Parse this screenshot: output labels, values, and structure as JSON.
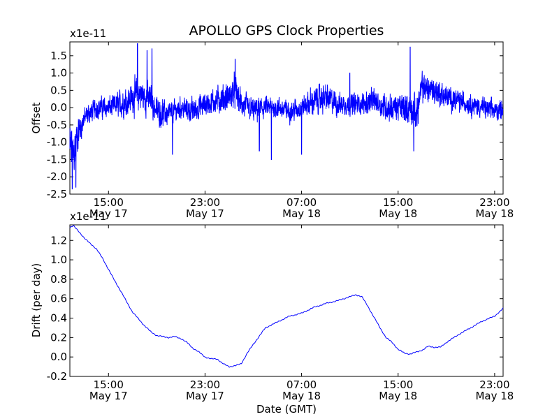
{
  "title": "APOLLO GPS Clock Properties",
  "xlabel": "Date (GMT)",
  "time_ticks": [
    {
      "hours": 15,
      "time": "15:00",
      "date": "May 17"
    },
    {
      "hours": 23,
      "time": "23:00",
      "date": "May 17"
    },
    {
      "hours": 31,
      "time": "07:00",
      "date": "May 18"
    },
    {
      "hours": 39,
      "time": "15:00",
      "date": "May 18"
    },
    {
      "hours": 47,
      "time": "23:00",
      "date": "May 18"
    }
  ],
  "chart_data": [
    {
      "type": "line",
      "name": "offset",
      "ylabel": "Offset",
      "exponent_label": "x1e-11",
      "xlim_hours": [
        11.8,
        47.7
      ],
      "ylim": [
        -2.5,
        1.9
      ],
      "yticks": [
        -2.5,
        -2.0,
        -1.5,
        -1.0,
        -0.5,
        0.0,
        0.5,
        1.0,
        1.5
      ],
      "ytick_labels": [
        "-2.5",
        "-2.0",
        "-1.5",
        "-1.0",
        "-0.5",
        "0.0",
        "0.5",
        "1.0",
        "1.5"
      ],
      "color": "#0000ff",
      "envelope_hours": [
        11.8,
        12.1,
        12.4,
        13.0,
        14.0,
        15.0,
        16.0,
        17.0,
        17.6,
        18.5,
        19.0,
        20.0,
        21.0,
        22.0,
        23.0,
        24.0,
        25.0,
        25.5,
        26.0,
        27.0,
        28.0,
        29.0,
        30.0,
        31.0,
        32.0,
        33.0,
        34.0,
        35.0,
        36.0,
        37.0,
        38.0,
        39.0,
        40.0,
        40.5,
        41.0,
        42.0,
        43.0,
        44.0,
        45.0,
        46.0,
        47.0,
        47.7
      ],
      "envelope_center": [
        -1.2,
        -1.4,
        -0.8,
        -0.3,
        0.0,
        0.0,
        0.1,
        0.3,
        0.4,
        0.2,
        -0.1,
        -0.2,
        0.0,
        -0.1,
        0.1,
        0.2,
        0.3,
        0.5,
        0.1,
        -0.1,
        0.0,
        0.0,
        -0.1,
        0.0,
        0.2,
        0.3,
        0.1,
        0.1,
        0.1,
        0.2,
        0.0,
        0.0,
        0.0,
        -0.2,
        0.6,
        0.5,
        0.3,
        0.2,
        0.1,
        0.0,
        -0.1,
        0.0
      ],
      "envelope_amplitude": [
        1.0,
        0.9,
        0.6,
        0.35,
        0.35,
        0.35,
        0.45,
        0.55,
        0.6,
        0.5,
        0.45,
        0.4,
        0.35,
        0.4,
        0.4,
        0.45,
        0.5,
        0.5,
        0.45,
        0.4,
        0.35,
        0.35,
        0.35,
        0.35,
        0.45,
        0.45,
        0.4,
        0.35,
        0.35,
        0.4,
        0.45,
        0.45,
        0.55,
        0.6,
        0.5,
        0.45,
        0.4,
        0.35,
        0.35,
        0.35,
        0.35,
        0.3
      ],
      "peaks": [
        {
          "hours": 12.0,
          "value": -2.35
        },
        {
          "hours": 12.3,
          "value": -2.3
        },
        {
          "hours": 17.4,
          "value": 1.85
        },
        {
          "hours": 18.2,
          "value": 1.65
        },
        {
          "hours": 18.6,
          "value": 1.7
        },
        {
          "hours": 20.3,
          "value": -1.35
        },
        {
          "hours": 25.5,
          "value": 1.4
        },
        {
          "hours": 27.5,
          "value": -1.25
        },
        {
          "hours": 28.5,
          "value": -1.5
        },
        {
          "hours": 31.0,
          "value": -1.35
        },
        {
          "hours": 35.0,
          "value": 1.0
        },
        {
          "hours": 40.0,
          "value": 1.75
        },
        {
          "hours": 40.3,
          "value": -1.25
        }
      ]
    },
    {
      "type": "line",
      "name": "drift",
      "ylabel": "Drift (per day)",
      "exponent_label": "x1e-11",
      "xlim_hours": [
        11.8,
        47.7
      ],
      "ylim": [
        -0.2,
        1.36
      ],
      "yticks": [
        -0.2,
        0.0,
        0.2,
        0.4,
        0.6,
        0.8,
        1.0,
        1.2
      ],
      "ytick_labels": [
        "-0.2",
        "0.0",
        "0.2",
        "0.4",
        "0.6",
        "0.8",
        "1.0",
        "1.2"
      ],
      "color": "#0000ff",
      "x_hours": [
        11.8,
        12.1,
        12.5,
        13.0,
        13.5,
        14.0,
        14.5,
        15.0,
        15.5,
        16.0,
        16.5,
        17.0,
        17.5,
        18.0,
        18.5,
        19.0,
        19.5,
        20.0,
        20.5,
        21.0,
        21.5,
        22.0,
        22.5,
        23.0,
        23.5,
        24.0,
        24.5,
        25.0,
        25.5,
        26.0,
        26.5,
        27.0,
        28.0,
        29.0,
        30.0,
        31.0,
        32.0,
        33.0,
        34.0,
        34.5,
        35.0,
        35.5,
        36.0,
        36.5,
        37.0,
        37.5,
        38.0,
        38.5,
        39.0,
        39.5,
        40.0,
        40.5,
        41.0,
        41.5,
        42.0,
        42.5,
        43.0,
        44.0,
        45.0,
        46.0,
        47.0,
        47.7
      ],
      "y_values": [
        1.33,
        1.35,
        1.3,
        1.22,
        1.17,
        1.11,
        1.02,
        0.9,
        0.79,
        0.68,
        0.57,
        0.46,
        0.39,
        0.32,
        0.26,
        0.22,
        0.21,
        0.2,
        0.21,
        0.19,
        0.15,
        0.09,
        0.05,
        0.0,
        -0.02,
        -0.02,
        -0.07,
        -0.1,
        -0.09,
        -0.07,
        0.04,
        0.13,
        0.3,
        0.36,
        0.42,
        0.45,
        0.51,
        0.55,
        0.58,
        0.6,
        0.62,
        0.64,
        0.62,
        0.52,
        0.41,
        0.3,
        0.2,
        0.15,
        0.08,
        0.04,
        0.03,
        0.05,
        0.07,
        0.11,
        0.1,
        0.1,
        0.15,
        0.23,
        0.3,
        0.37,
        0.42,
        0.5
      ]
    }
  ]
}
